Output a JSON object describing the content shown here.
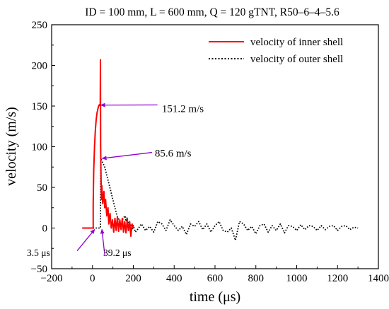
{
  "chart_data": {
    "type": "line",
    "title": "ID = 100 mm, L = 600 mm, Q = 120 gTNT, R50–6–4–5.6",
    "xlabel": "time (μs)",
    "ylabel": "velocity (m/s)",
    "xlim": [
      -200,
      1400
    ],
    "ylim": [
      -50,
      250
    ],
    "xticks": [
      "−200",
      "0",
      "200",
      "400",
      "600",
      "800",
      "1000",
      "1200",
      "1400"
    ],
    "yticks": [
      "−50",
      "0",
      "50",
      "100",
      "150",
      "200",
      "250"
    ],
    "legend_position": "top-right",
    "colors": {
      "inner": "#ff0000",
      "outer": "#000000",
      "annotation": "#9400d3"
    },
    "series": [
      {
        "name": "velocity of inner shell",
        "style": "solid",
        "x": [
          -50,
          -20,
          0,
          3.5,
          3.5,
          6,
          10,
          14,
          18,
          22,
          26,
          30,
          32,
          34,
          36,
          38,
          39,
          40,
          42,
          44,
          46,
          50,
          56,
          60,
          64,
          70,
          76,
          80,
          86,
          92,
          98,
          104,
          110,
          116,
          122,
          128,
          134,
          140,
          146,
          152,
          158,
          164,
          170,
          176,
          182,
          188,
          194,
          200
        ],
        "y": [
          0,
          0,
          0,
          0,
          30,
          70,
          100,
          120,
          133,
          141,
          146,
          150,
          151.2,
          151.2,
          152,
          150,
          207,
          100,
          60,
          35,
          52,
          30,
          45,
          25,
          35,
          15,
          25,
          5,
          18,
          0,
          10,
          -5,
          12,
          -3,
          14,
          -4,
          10,
          -2,
          12,
          -5,
          8,
          -6,
          10,
          -3,
          8,
          -10,
          5,
          0
        ]
      },
      {
        "name": "velocity of outer shell",
        "style": "dotted",
        "x": [
          -50,
          -20,
          0,
          20,
          30,
          39.2,
          39.2,
          41,
          44,
          60,
          80,
          100,
          120,
          140,
          150,
          160,
          165,
          170,
          175,
          180,
          185,
          190,
          195,
          200,
          210,
          220,
          240,
          260,
          280,
          300,
          320,
          340,
          360,
          380,
          400,
          420,
          440,
          460,
          480,
          500,
          520,
          540,
          560,
          580,
          600,
          620,
          640,
          660,
          680,
          700,
          720,
          740,
          760,
          780,
          800,
          820,
          840,
          860,
          880,
          900,
          920,
          940,
          960,
          980,
          1000,
          1020,
          1040,
          1060,
          1080,
          1100,
          1120,
          1140,
          1160,
          1180,
          1200,
          1220,
          1240,
          1260,
          1280,
          1300
        ],
        "y": [
          0,
          0,
          0,
          0,
          0,
          0,
          30,
          85.6,
          84,
          75,
          55,
          35,
          15,
          5,
          12,
          15,
          8,
          13,
          2,
          8,
          0,
          5,
          -2,
          3,
          -5,
          -2,
          5,
          -3,
          2,
          -5,
          8,
          5,
          -3,
          10,
          3,
          -3,
          2,
          -8,
          5,
          2,
          8,
          -2,
          5,
          -5,
          3,
          8,
          -3,
          -5,
          0,
          -15,
          8,
          5,
          -3,
          2,
          -7,
          3,
          5,
          -5,
          3,
          -3,
          5,
          -6,
          3,
          2,
          -3,
          4,
          -2,
          3,
          2,
          -3,
          3,
          -2,
          2,
          3,
          -3,
          2,
          3,
          -2,
          1,
          0
        ]
      }
    ],
    "annotations": [
      {
        "label": "151.2 m/s",
        "x": 34,
        "y": 151.2
      },
      {
        "label": "85.6 m/s",
        "x": 41,
        "y": 85.6
      },
      {
        "label": "3.5 μs",
        "x": 3.5,
        "y": 0
      },
      {
        "label": "39.2 μs",
        "x": 39.2,
        "y": 0
      }
    ]
  }
}
